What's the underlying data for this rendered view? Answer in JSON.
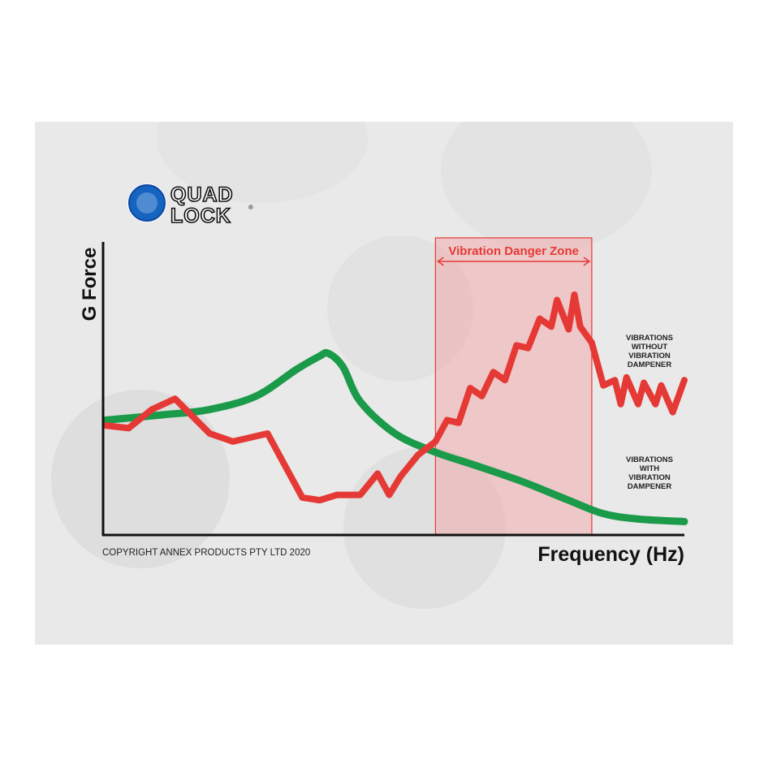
{
  "brand": {
    "name_line1": "QUAD",
    "name_line2": "LOCK",
    "trademark": "®",
    "color": "#1565c0"
  },
  "copyright": "COPYRIGHT ANNEX PRODUCTS PTY LTD 2020",
  "chart_data": {
    "type": "line",
    "title": "",
    "xlabel": "Frequency (Hz)",
    "ylabel": "G Force",
    "xlim": [
      0,
      100
    ],
    "ylim": [
      0,
      100
    ],
    "grid": false,
    "ticks": false,
    "danger_zone": {
      "label": "Vibration Danger Zone",
      "x_start": 57,
      "x_end": 84,
      "color": "#f4a0a0",
      "label_color": "#e53935"
    },
    "series": [
      {
        "name": "VIBRATIONS WITHOUT VIBRATION DAMPENER",
        "label_lines": [
          "VIBRATIONS",
          "WITHOUT",
          "VIBRATION",
          "DAMPENER"
        ],
        "color": "#e53935",
        "x": [
          0,
          4,
          8,
          12,
          18,
          22,
          28,
          34,
          37,
          40,
          44,
          47,
          49,
          51,
          54,
          57,
          59,
          61,
          63,
          65,
          67,
          69,
          71,
          73,
          75,
          77,
          78,
          80,
          81,
          82,
          84,
          86,
          88,
          89,
          90,
          92,
          93,
          95,
          96,
          98,
          100
        ],
        "y": [
          41,
          40,
          47,
          51,
          38,
          35,
          38,
          14,
          13,
          15,
          15,
          23,
          15,
          22,
          30,
          35,
          43,
          42,
          55,
          52,
          61,
          58,
          71,
          70,
          81,
          78,
          88,
          77,
          90,
          78,
          72,
          56,
          58,
          49,
          59,
          49,
          57,
          49,
          56,
          46,
          58
        ]
      },
      {
        "name": "VIBRATIONS WITH VIBRATION DAMPENER",
        "label_lines": [
          "VIBRATIONS",
          "WITH",
          "VIBRATION",
          "DAMPENER"
        ],
        "color": "#1b9a4a",
        "x": [
          0,
          10,
          18,
          26,
          33,
          37,
          38.5,
          41,
          44,
          50,
          57,
          64,
          72,
          80,
          86,
          92,
          100
        ],
        "y": [
          43,
          45,
          47,
          52,
          62,
          67,
          68,
          63,
          50,
          38,
          31,
          26,
          20,
          13,
          8,
          6,
          5
        ]
      }
    ]
  }
}
